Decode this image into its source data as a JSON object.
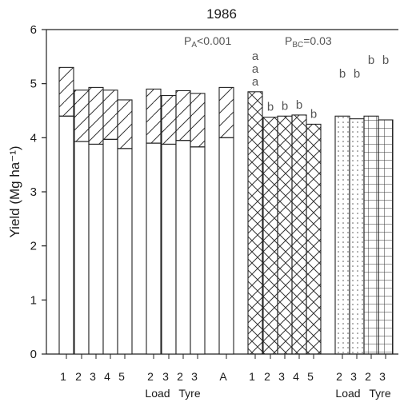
{
  "chart_data": {
    "type": "bar",
    "title": "1986",
    "ylabel": "Yield (Mg ha⁻¹)",
    "ylim": [
      0,
      6
    ],
    "yticks": [
      "0",
      "1",
      "2",
      "3",
      "4",
      "5",
      "6"
    ],
    "annotations": {
      "pa": "P",
      "pa_sub": "A",
      "pa_rest": "<0.001",
      "pbc": "P",
      "pbc_sub": "BC",
      "pbc_rest": "=0.03"
    },
    "group_labels": {
      "load_1": "Load",
      "tyre_1": "Tyre",
      "load_2": "Load",
      "tyre_2": "Tyre"
    },
    "bars": [
      {
        "label": "1",
        "total": 5.3,
        "lower": 4.4,
        "pattern": "stack",
        "letter": ""
      },
      {
        "label": "2",
        "total": 4.88,
        "lower": 3.93,
        "pattern": "stack",
        "letter": ""
      },
      {
        "label": "3",
        "total": 4.93,
        "lower": 3.88,
        "pattern": "stack",
        "letter": ""
      },
      {
        "label": "4",
        "total": 4.88,
        "lower": 3.97,
        "pattern": "stack",
        "letter": ""
      },
      {
        "label": "5",
        "total": 4.7,
        "lower": 3.8,
        "pattern": "stack",
        "letter": ""
      },
      {
        "label": "2",
        "total": 4.9,
        "lower": 3.9,
        "pattern": "stack",
        "letter": ""
      },
      {
        "label": "3",
        "total": 4.78,
        "lower": 3.88,
        "pattern": "stack",
        "letter": ""
      },
      {
        "label": "2",
        "total": 4.87,
        "lower": 3.95,
        "pattern": "stack",
        "letter": ""
      },
      {
        "label": "3",
        "total": 4.82,
        "lower": 3.83,
        "pattern": "stack",
        "letter": ""
      },
      {
        "label": "A",
        "total": 4.93,
        "lower": 4.0,
        "pattern": "stack",
        "letter": ""
      },
      {
        "label": "1",
        "total": 4.85,
        "lower": 0,
        "pattern": "crosshatch",
        "letter": "a"
      },
      {
        "label": "2",
        "total": 4.38,
        "lower": 0,
        "pattern": "crosshatch",
        "letter": "b"
      },
      {
        "label": "3",
        "total": 4.4,
        "lower": 0,
        "pattern": "crosshatch",
        "letter": "b"
      },
      {
        "label": "4",
        "total": 4.42,
        "lower": 0,
        "pattern": "crosshatch",
        "letter": "b"
      },
      {
        "label": "5",
        "total": 4.25,
        "lower": 0,
        "pattern": "crosshatch",
        "letter": "b"
      },
      {
        "label": "2",
        "total": 4.4,
        "lower": 0,
        "pattern": "dots",
        "letter": "b"
      },
      {
        "label": "3",
        "total": 4.35,
        "lower": 0,
        "pattern": "dots",
        "letter": "b"
      },
      {
        "label": "2",
        "total": 4.4,
        "lower": 0,
        "pattern": "grid",
        "letter": "b"
      },
      {
        "label": "3",
        "total": 4.33,
        "lower": 0,
        "pattern": "grid",
        "letter": "b"
      }
    ],
    "extra_letters": [
      "a",
      "a"
    ]
  }
}
